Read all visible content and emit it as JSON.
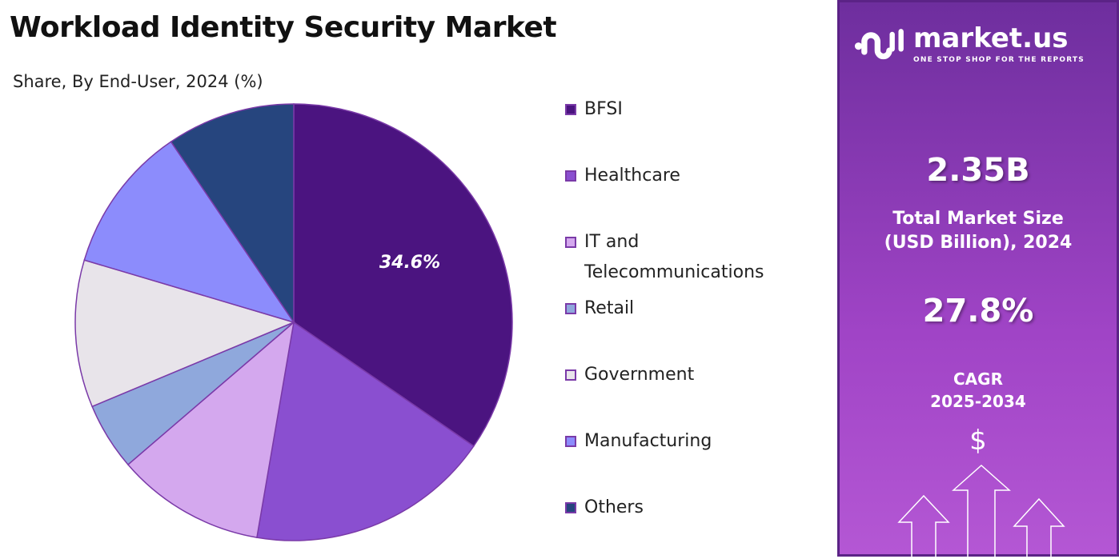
{
  "chart_data": {
    "type": "pie",
    "title": "Workload Identity Security Market",
    "subtitle": "Share, By End-User, 2024 (%)",
    "categories": [
      "BFSI",
      "Healthcare",
      "IT and Telecommunications",
      "Retail",
      "Government",
      "Manufacturing",
      "Others"
    ],
    "values": [
      34.6,
      18.1,
      11.0,
      5.0,
      10.9,
      10.9,
      9.5
    ],
    "colors": [
      "#4b1480",
      "#8a4fd0",
      "#d4a8ee",
      "#8fa8dc",
      "#e8e4ea",
      "#8c8cfc",
      "#26457e"
    ],
    "data_labels": [
      "34.6%",
      "",
      "",
      "",
      "",
      "",
      ""
    ],
    "legend_placement": "right"
  },
  "legend": {
    "items": [
      "BFSI",
      "Healthcare",
      "IT and",
      "Telecommunications",
      "Retail",
      "Government",
      "Manufacturing",
      "Others"
    ]
  },
  "panel": {
    "brand": "market.us",
    "tagline": "ONE STOP SHOP FOR THE REPORTS",
    "market_size": "2.35B",
    "market_size_label1": "Total Market Size",
    "market_size_label2": "(USD Billion), 2024",
    "cagr": "27.8%",
    "cagr_label1": "CAGR",
    "cagr_label2": "2025-2034",
    "dollar": "$"
  }
}
